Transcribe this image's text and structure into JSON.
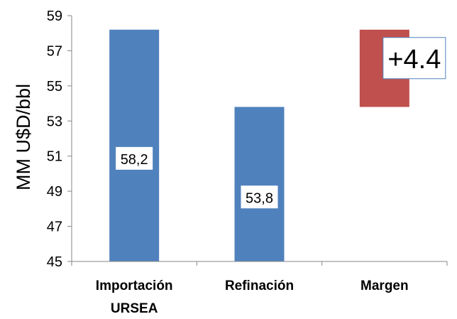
{
  "chart_data": {
    "type": "bar",
    "subtype": "waterfall",
    "title": "",
    "ylabel": "MM U$D/bbl",
    "xlabel": "",
    "ylim": [
      45,
      59
    ],
    "yticks": [
      "45",
      "47",
      "49",
      "51",
      "53",
      "55",
      "57",
      "59"
    ],
    "grid": false,
    "legend": "none",
    "categories": [
      [
        "Importación",
        "URSEA"
      ],
      [
        "Refinación"
      ],
      [
        "Margen"
      ]
    ],
    "bars": [
      {
        "category": "Importación URSEA",
        "base": 45,
        "value": 58.2,
        "label": "58,2",
        "color": "#4F81BD"
      },
      {
        "category": "Refinación",
        "base": 45,
        "value": 53.8,
        "label": "53,8",
        "color": "#4F81BD"
      },
      {
        "category": "Margen",
        "base": 53.8,
        "value": 58.2,
        "label": "+4.4",
        "color": "#C0504D"
      }
    ]
  }
}
